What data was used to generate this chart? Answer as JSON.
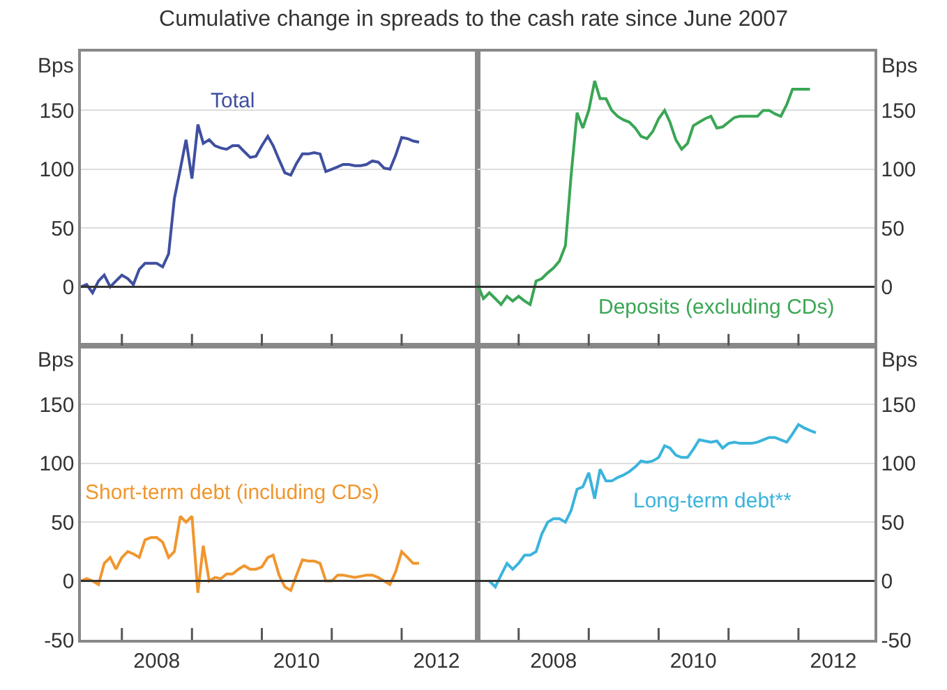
{
  "chart_data": [
    {
      "type": "line",
      "title": "Cumulative change in spreads to the cash rate since June 2007",
      "ylabel": "Bps",
      "tick_labels": "y",
      "grid": "y",
      "x": [
        "2007-06",
        "2007-07",
        "2007-08",
        "2007-09",
        "2007-10",
        "2007-11",
        "2007-12",
        "2008-01",
        "2008-02",
        "2008-03",
        "2008-04",
        "2008-05",
        "2008-06",
        "2008-07",
        "2008-08",
        "2008-09",
        "2008-10",
        "2008-11",
        "2008-12",
        "2009-01",
        "2009-02",
        "2009-03",
        "2009-04",
        "2009-05",
        "2009-06",
        "2009-07",
        "2009-08",
        "2009-09",
        "2009-10",
        "2009-11",
        "2009-12",
        "2010-01",
        "2010-02",
        "2010-03",
        "2010-04",
        "2010-05",
        "2010-06",
        "2010-07",
        "2010-08",
        "2010-09",
        "2010-10",
        "2010-11",
        "2010-12",
        "2011-01",
        "2011-02",
        "2011-03",
        "2011-04",
        "2011-05",
        "2011-06",
        "2011-07",
        "2011-08",
        "2011-09",
        "2011-10",
        "2011-11",
        "2011-12",
        "2012-01",
        "2012-02",
        "2012-03",
        "2012-04"
      ],
      "series": [
        {
          "name": "Total",
          "color": "#3f4fa0",
          "values": [
            0,
            2,
            -5,
            5,
            10,
            0,
            5,
            10,
            7,
            2,
            15,
            20,
            20,
            20,
            17,
            28,
            75,
            100,
            125,
            92,
            138,
            122,
            125,
            120,
            118,
            117,
            120,
            120,
            115,
            110,
            111,
            120,
            128,
            120,
            108,
            97,
            95,
            105,
            113,
            113,
            114,
            113,
            98,
            100,
            102,
            104,
            104,
            103,
            103,
            104,
            107,
            106,
            101,
            100,
            112,
            127,
            126,
            124,
            123
          ]
        }
      ],
      "xlim": [
        "2007-06",
        "2013-02"
      ],
      "ylim": [
        -50,
        200
      ],
      "yticks": [
        0,
        50,
        100,
        150
      ],
      "xticks": [
        {
          "value": "2008-01",
          "label": null
        },
        {
          "value": "2009-01",
          "label": null
        },
        {
          "value": "2010-01",
          "label": null
        },
        {
          "value": "2011-01",
          "label": null
        },
        {
          "value": "2012-01",
          "label": null
        }
      ],
      "ref_lines": [
        {
          "axis": "y",
          "value": 0,
          "color": "#333333"
        }
      ]
    },
    {
      "type": "line",
      "ylabel": "Bps",
      "tick_labels": "y",
      "grid": "y",
      "x": [
        "2007-06",
        "2007-07",
        "2007-08",
        "2007-09",
        "2007-10",
        "2007-11",
        "2007-12",
        "2008-01",
        "2008-02",
        "2008-03",
        "2008-04",
        "2008-05",
        "2008-06",
        "2008-07",
        "2008-08",
        "2008-09",
        "2008-10",
        "2008-11",
        "2008-12",
        "2009-01",
        "2009-02",
        "2009-03",
        "2009-04",
        "2009-05",
        "2009-06",
        "2009-07",
        "2009-08",
        "2009-09",
        "2009-10",
        "2009-11",
        "2009-12",
        "2010-01",
        "2010-02",
        "2010-03",
        "2010-04",
        "2010-05",
        "2010-06",
        "2010-07",
        "2010-08",
        "2010-09",
        "2010-10",
        "2010-11",
        "2010-12",
        "2011-01",
        "2011-02",
        "2011-03",
        "2011-04",
        "2011-05",
        "2011-06",
        "2011-07",
        "2011-08",
        "2011-09",
        "2011-10",
        "2011-11",
        "2011-12",
        "2012-01",
        "2012-02",
        "2012-03"
      ],
      "series": [
        {
          "name": "Deposits (excluding CDs)",
          "color": "#3aa655",
          "values": [
            2,
            -10,
            -5,
            -10,
            -15,
            -8,
            -12,
            -8,
            -12,
            -15,
            5,
            7,
            12,
            16,
            22,
            35,
            95,
            148,
            135,
            150,
            175,
            160,
            160,
            150,
            145,
            142,
            140,
            135,
            128,
            126,
            132,
            143,
            150,
            140,
            125,
            117,
            122,
            137,
            140,
            143,
            145,
            135,
            136,
            140,
            144,
            145,
            145,
            145,
            145,
            150,
            150,
            147,
            145,
            155,
            168,
            168,
            168,
            168
          ]
        }
      ],
      "xlim": [
        "2007-06",
        "2013-02"
      ],
      "ylim": [
        -50,
        200
      ],
      "yticks": [
        0,
        50,
        100,
        150
      ],
      "xticks": [
        {
          "value": "2008-01",
          "label": null
        },
        {
          "value": "2009-01",
          "label": null
        },
        {
          "value": "2010-01",
          "label": null
        },
        {
          "value": "2011-01",
          "label": null
        },
        {
          "value": "2012-01",
          "label": null
        }
      ],
      "ref_lines": [
        {
          "axis": "y",
          "value": 0,
          "color": "#333333"
        }
      ]
    },
    {
      "type": "line",
      "ylabel": "Bps",
      "grid": "y",
      "x": [
        "2007-06",
        "2007-07",
        "2007-08",
        "2007-09",
        "2007-10",
        "2007-11",
        "2007-12",
        "2008-01",
        "2008-02",
        "2008-03",
        "2008-04",
        "2008-05",
        "2008-06",
        "2008-07",
        "2008-08",
        "2008-09",
        "2008-10",
        "2008-11",
        "2008-12",
        "2009-01",
        "2009-02",
        "2009-03",
        "2009-04",
        "2009-05",
        "2009-06",
        "2009-07",
        "2009-08",
        "2009-09",
        "2009-10",
        "2009-11",
        "2009-12",
        "2010-01",
        "2010-02",
        "2010-03",
        "2010-04",
        "2010-05",
        "2010-06",
        "2010-07",
        "2010-08",
        "2010-09",
        "2010-10",
        "2010-11",
        "2010-12",
        "2011-01",
        "2011-02",
        "2011-03",
        "2011-04",
        "2011-05",
        "2011-06",
        "2011-07",
        "2011-08",
        "2011-09",
        "2011-10",
        "2011-11",
        "2011-12",
        "2012-01",
        "2012-02",
        "2012-03",
        "2012-04"
      ],
      "series": [
        {
          "name": "Short-term debt (including CDs)",
          "color": "#f0962e",
          "values": [
            0,
            2,
            0,
            -3,
            15,
            20,
            10,
            20,
            25,
            23,
            20,
            35,
            37,
            37,
            33,
            20,
            25,
            55,
            50,
            55,
            -10,
            30,
            0,
            3,
            2,
            6,
            6,
            10,
            13,
            10,
            10,
            12,
            20,
            22,
            5,
            -5,
            -8,
            5,
            18,
            17,
            17,
            15,
            0,
            0,
            5,
            5,
            4,
            3,
            4,
            5,
            5,
            3,
            0,
            -3,
            8,
            25,
            20,
            15,
            15
          ]
        }
      ],
      "xlim": [
        "2007-06",
        "2013-02"
      ],
      "ylim": [
        -50,
        200
      ],
      "yticks": [
        -50,
        0,
        50,
        100,
        150
      ],
      "xticks": [
        {
          "value": "2008-01",
          "label": null
        },
        {
          "value": "2009-01",
          "label": null
        },
        {
          "value": "2010-01",
          "label": null
        },
        {
          "value": "2011-01",
          "label": null
        },
        {
          "value": "2012-01",
          "label": null
        },
        {
          "value": "2008-07",
          "label": "2008"
        },
        {
          "value": "2010-07",
          "label": "2010"
        },
        {
          "value": "2012-07",
          "label": "2012"
        }
      ],
      "ref_lines": [
        {
          "axis": "y",
          "value": 0,
          "color": "#333333"
        }
      ]
    },
    {
      "type": "line",
      "ylabel": "Bps",
      "grid": "y",
      "x": [
        "2007-08",
        "2007-09",
        "2007-10",
        "2007-11",
        "2007-12",
        "2008-01",
        "2008-02",
        "2008-03",
        "2008-04",
        "2008-05",
        "2008-06",
        "2008-07",
        "2008-08",
        "2008-09",
        "2008-10",
        "2008-11",
        "2008-12",
        "2009-01",
        "2009-02",
        "2009-03",
        "2009-04",
        "2009-05",
        "2009-06",
        "2009-07",
        "2009-08",
        "2009-09",
        "2009-10",
        "2009-11",
        "2009-12",
        "2010-01",
        "2010-02",
        "2010-03",
        "2010-04",
        "2010-05",
        "2010-06",
        "2010-07",
        "2010-08",
        "2010-09",
        "2010-10",
        "2010-11",
        "2010-12",
        "2011-01",
        "2011-02",
        "2011-03",
        "2011-04",
        "2011-05",
        "2011-06",
        "2011-07",
        "2011-08",
        "2011-09",
        "2011-10",
        "2011-11",
        "2011-12",
        "2012-01",
        "2012-02",
        "2012-03",
        "2012-04"
      ],
      "series": [
        {
          "name": "Long-term debt**",
          "color": "#3bb4dc",
          "values": [
            0,
            -5,
            5,
            15,
            10,
            15,
            22,
            22,
            25,
            40,
            50,
            53,
            53,
            50,
            60,
            78,
            80,
            92,
            70,
            95,
            85,
            85,
            88,
            90,
            93,
            97,
            102,
            101,
            102,
            105,
            115,
            113,
            107,
            105,
            105,
            112,
            120,
            119,
            118,
            119,
            113,
            117,
            118,
            117,
            117,
            117,
            118,
            120,
            122,
            122,
            120,
            118,
            125,
            133,
            130,
            128,
            126
          ]
        }
      ],
      "xlim": [
        "2007-06",
        "2013-02"
      ],
      "ylim": [
        -50,
        200
      ],
      "yticks": [
        -50,
        0,
        50,
        100,
        150
      ],
      "xticks": [
        {
          "value": "2008-01",
          "label": null
        },
        {
          "value": "2009-01",
          "label": null
        },
        {
          "value": "2010-01",
          "label": null
        },
        {
          "value": "2011-01",
          "label": null
        },
        {
          "value": "2012-01",
          "label": null
        },
        {
          "value": "2008-07",
          "label": "2008"
        },
        {
          "value": "2010-07",
          "label": "2010"
        },
        {
          "value": "2012-07",
          "label": "2012"
        }
      ],
      "ref_lines": [
        {
          "axis": "y",
          "value": 0,
          "color": "#333333"
        }
      ]
    }
  ]
}
